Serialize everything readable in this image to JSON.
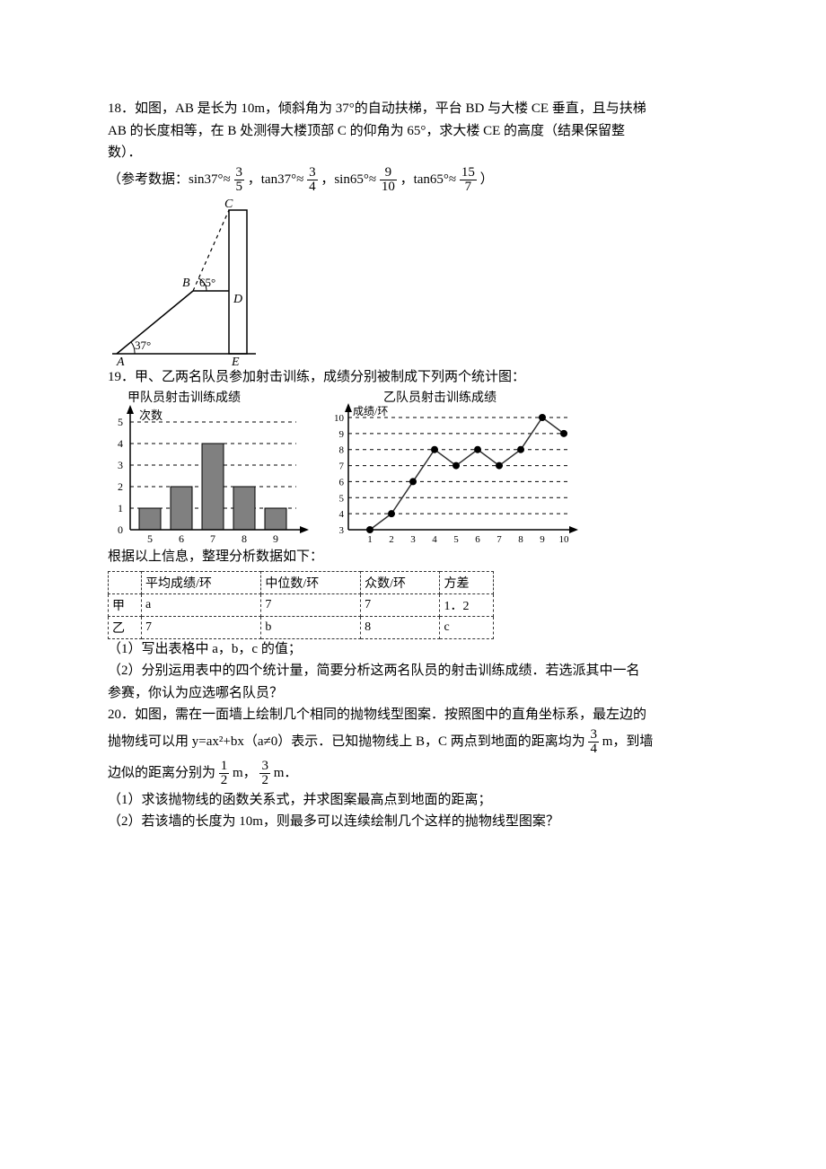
{
  "q18": {
    "text_line1": "18．如图，AB 是长为 10m，倾斜角为 37°的自动扶梯，平台 BD 与大楼 CE 垂直，且与扶梯",
    "text_line2": "AB 的长度相等，在 B 处测得大楼顶部 C 的仰角为 65°，求大楼 CE 的高度（结果保留整",
    "text_line3": "数）．",
    "ref_prefix": "（参考数据：sin37°≈",
    "f1n": "3",
    "f1d": "5",
    "c1": "，tan37°≈",
    "f2n": "3",
    "f2d": "4",
    "c2": "，sin65°≈",
    "f3n": "9",
    "f3d": "10",
    "c3": "，tan65°≈",
    "f4n": "15",
    "f4d": "7",
    "c4": "）",
    "diagram": {
      "labels": {
        "A": "A",
        "B": "B",
        "C": "C",
        "D": "D",
        "E": "E",
        "ang37": "37°",
        "ang65": "65°"
      }
    }
  },
  "q19": {
    "text_line1": "19．甲、乙两名队员参加射击训练，成绩分别被制成下列两个统计图：",
    "chart1_title": "甲队员射击训练成绩",
    "chart2_title": "乙队员射击训练成绩",
    "chart1": {
      "ylabel": "次数",
      "bars": [
        {
          "x": "5",
          "h": 1
        },
        {
          "x": "6",
          "h": 2
        },
        {
          "x": "7",
          "h": 4
        },
        {
          "x": "8",
          "h": 2
        },
        {
          "x": "9",
          "h": 1
        }
      ],
      "yticks": [
        "0",
        "1",
        "2",
        "3",
        "4",
        "5"
      ],
      "bar_color": "#808080",
      "grid_dash": "4,4"
    },
    "chart2": {
      "ylabel": "成绩/环",
      "points": [
        3,
        4,
        6,
        8,
        7,
        8,
        7,
        8,
        10,
        9
      ],
      "xticks": [
        "1",
        "2",
        "3",
        "4",
        "5",
        "6",
        "7",
        "8",
        "9",
        "10"
      ],
      "yticks": [
        "3",
        "4",
        "5",
        "6",
        "7",
        "8",
        "9",
        "10"
      ],
      "point_color": "#000000",
      "line_color": "#333333",
      "grid_dash": "4,4"
    },
    "pre_table": "根据以上信息，整理分析数据如下：",
    "table": {
      "headers": [
        "",
        "平均成绩/环",
        "中位数/环",
        "众数/环",
        "方差"
      ],
      "rows": [
        [
          "甲",
          "a",
          "7",
          "7",
          "1．2"
        ],
        [
          "乙",
          "7",
          "b",
          "8",
          "c"
        ]
      ]
    },
    "part1": "（1）写出表格中 a，b，c 的值；",
    "part2_l1": "（2）分别运用表中的四个统计量，简要分析这两名队员的射击训练成绩．若选派其中一名",
    "part2_l2": "参赛，你认为应选哪名队员？"
  },
  "q20": {
    "line1": "20．如图，需在一面墙上绘制几个相同的抛物线型图案．按照图中的直角坐标系，最左边的",
    "line2_pre": "抛物线可以用 y=ax²+bx（a≠0）表示．已知抛物线上 B，C 两点到地面的距离均为",
    "f_bc_n": "3",
    "f_bc_d": "4",
    "line2_post": "m，到墙",
    "line3_pre": "边似的距离分别为",
    "f_h_n": "1",
    "f_h_d": "2",
    "line3_mid": "m，",
    "f_hh_n": "3",
    "f_hh_d": "2",
    "line3_post": " m．",
    "part1": "（1）求该抛物线的函数关系式，并求图案最高点到地面的距离；",
    "part2": "（2）若该墙的长度为 10m，则最多可以连续绘制几个这样的抛物线型图案？"
  }
}
